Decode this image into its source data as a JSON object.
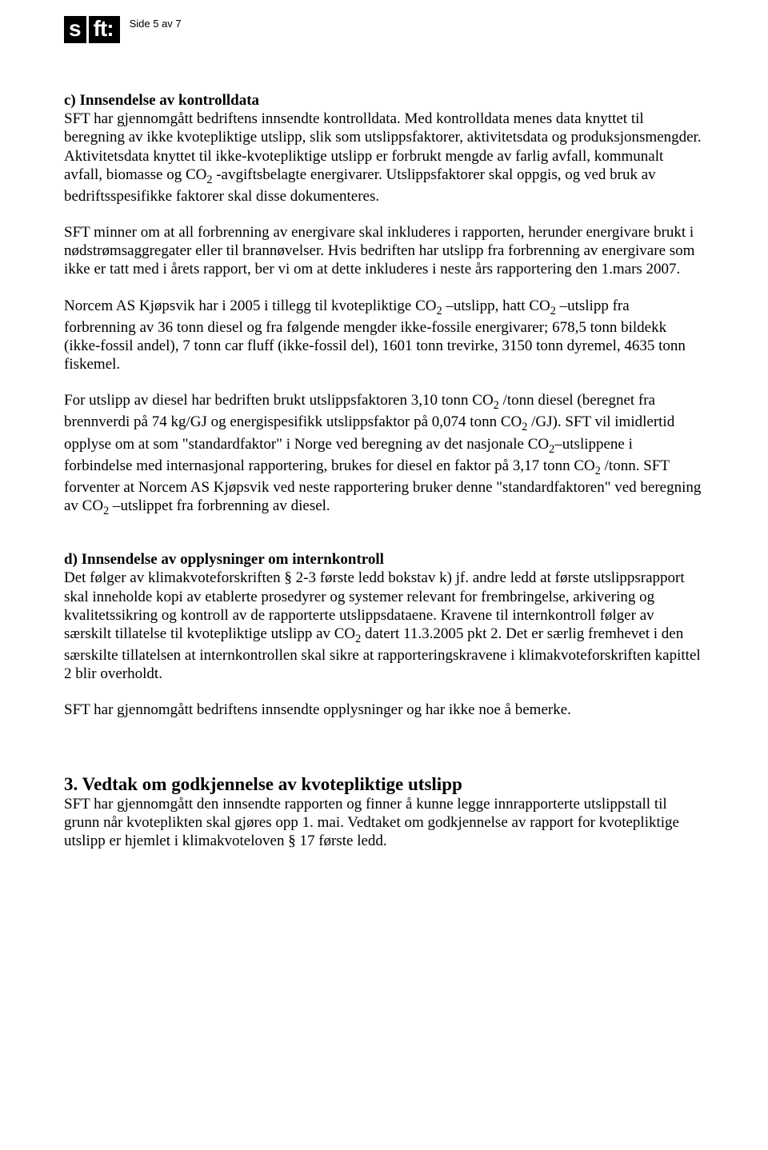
{
  "header": {
    "logo_s": "s",
    "logo_ft": "ft:",
    "page_indicator": "Side 5 av 7"
  },
  "section_c": {
    "title": "c) Innsendelse av kontrolldata",
    "p1": "SFT har gjennomgått bedriftens innsendte kontrolldata. Med kontrolldata menes data knyttet til beregning av ikke kvotepliktige utslipp, slik som utslippsfaktorer, aktivitetsdata og produksjonsmengder. Aktivitetsdata knyttet til ikke-kvotepliktige utslipp er forbrukt mengde av farlig avfall, kommunalt avfall, biomasse og CO",
    "p1_sub": "2",
    "p1_cont": " -avgiftsbelagte energivarer. Utslippsfaktorer skal oppgis, og ved bruk av bedriftsspesifikke faktorer skal disse dokumenteres.",
    "p2": "SFT minner om at all forbrenning av energivare skal inkluderes i rapporten, herunder energivare brukt i nødstrømsaggregater eller til brannøvelser. Hvis bedriften har utslipp fra forbrenning av energivare som ikke er tatt med i årets rapport, ber vi om at dette inkluderes i neste års rapportering den 1.mars 2007.",
    "p3a": "Norcem AS Kjøpsvik har i 2005 i tillegg til kvotepliktige CO",
    "p3a_sub": "2",
    "p3b": " –utslipp, hatt CO",
    "p3b_sub": "2",
    "p3c": " –utslipp fra forbrenning av 36 tonn diesel og fra følgende mengder ikke-fossile energivarer; 678,5 tonn bildekk (ikke-fossil andel), 7 tonn car fluff (ikke-fossil del), 1601 tonn trevirke, 3150 tonn dyremel, 4635 tonn fiskemel.",
    "p4a": "For utslipp av diesel har bedriften brukt utslippsfaktoren 3,10 tonn CO",
    "p4a_sub": "2",
    "p4b": " /tonn diesel (beregnet fra brennverdi på 74 kg/GJ og energispesifikk utslippsfaktor på 0,074 tonn CO",
    "p4b_sub": "2",
    "p4c": " /GJ). SFT vil imidlertid opplyse om at som \"standardfaktor\" i Norge ved beregning av det nasjonale CO",
    "p4c_sub": "2",
    "p4d": "–utslippene i forbindelse med internasjonal rapportering, brukes for diesel en faktor på 3,17 tonn CO",
    "p4d_sub": "2",
    "p4e": " /tonn. SFT forventer at Norcem AS Kjøpsvik ved neste rapportering bruker denne \"standardfaktoren\" ved beregning av CO",
    "p4e_sub": "2",
    "p4f": " –utslippet fra forbrenning av diesel."
  },
  "section_d": {
    "title": "d) Innsendelse av opplysninger om internkontroll",
    "p1a": "Det følger av klimakvoteforskriften § 2-3 første ledd bokstav k) jf. andre ledd at første utslippsrapport skal inneholde kopi av etablerte prosedyrer og systemer relevant for frembringelse, arkivering og kvalitetssikring og kontroll av de rapporterte utslippsdataene. Kravene til internkontroll følger av særskilt tillatelse til kvotepliktige utslipp av CO",
    "p1a_sub": "2",
    "p1b": " datert 11.3.2005 pkt 2. Det er særlig fremhevet i den særskilte tillatelsen at internkontrollen skal sikre at rapporteringskravene i klimakvoteforskriften kapittel 2 blir overholdt.",
    "p2": "SFT har gjennomgått bedriftens innsendte opplysninger og har ikke noe å bemerke."
  },
  "section_3": {
    "title": "3. Vedtak om godkjennelse av kvotepliktige utslipp",
    "p1": "SFT har gjennomgått den innsendte rapporten og finner å kunne legge innrapporterte utslippstall til grunn når kvoteplikten skal gjøres opp 1. mai. Vedtaket om godkjennelse av rapport for kvotepliktige utslipp er hjemlet i klimakvoteloven § 17 første ledd."
  }
}
